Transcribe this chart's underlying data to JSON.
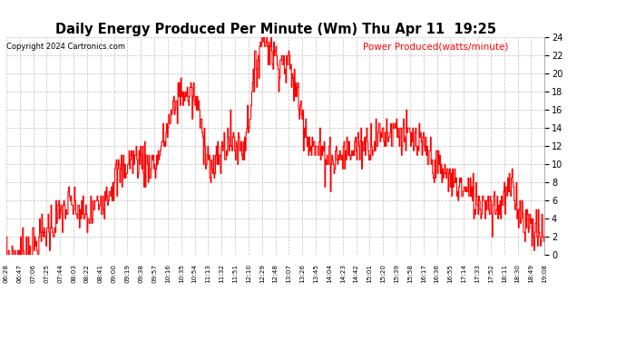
{
  "title": "Daily Energy Produced Per Minute (Wm) Thu Apr 11  19:25",
  "copyright": "Copyright 2024 Cartronics.com",
  "legend_label": "Power Produced(watts/minute)",
  "ylim": [
    0,
    24
  ],
  "yticks": [
    0,
    2,
    4,
    6,
    8,
    10,
    12,
    14,
    16,
    18,
    20,
    22,
    24
  ],
  "line_color": "#ff0000",
  "bg_color": "#ffffff",
  "grid_color": "#b0b0b0",
  "title_color": "#000000",
  "copyright_color": "#000000",
  "legend_color": "#ff0000",
  "x_labels": [
    "06:28",
    "06:47",
    "07:06",
    "07:25",
    "07:44",
    "08:03",
    "08:22",
    "08:41",
    "09:00",
    "09:19",
    "09:38",
    "09:57",
    "10:16",
    "10:35",
    "10:54",
    "11:13",
    "11:32",
    "11:51",
    "12:10",
    "12:29",
    "12:48",
    "13:07",
    "13:26",
    "13:45",
    "14:04",
    "14:23",
    "14:42",
    "15:01",
    "15:20",
    "15:39",
    "15:58",
    "16:17",
    "16:36",
    "16:55",
    "17:14",
    "17:33",
    "17:52",
    "18:11",
    "18:30",
    "18:49",
    "19:08"
  ]
}
